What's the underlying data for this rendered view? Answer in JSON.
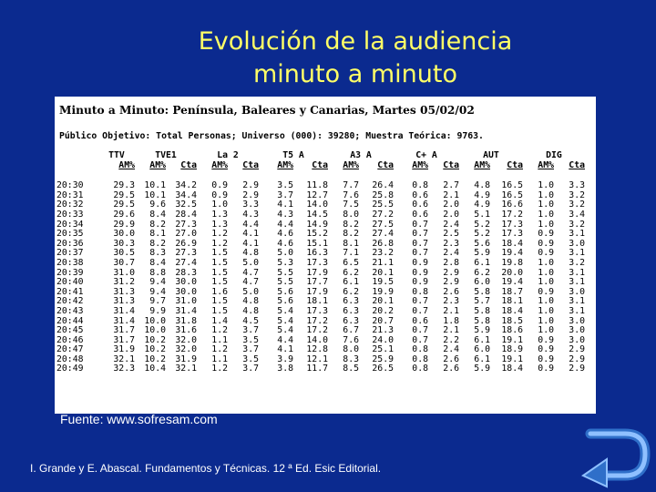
{
  "slide": {
    "title_line1": "Evolución de la audiencia",
    "title_line2": "minuto a minuto",
    "source": "Fuente: www.sofresam.com",
    "footer": "I. Grande y E. Abascal. Fundamentos y Técnicas. 12 ª Ed. Esic Editorial."
  },
  "panel": {
    "title": "Minuto a Minuto: Península, Baleares y Canarias, Martes 05/02/02",
    "subtitle": "Público Objetivo: Total Personas; Universo (000): 39280; Muestra Teórica: 9763.",
    "channels": [
      "TTV",
      "TVE1",
      "La 2",
      "T5 A",
      "A3 A",
      "C+ A",
      "AUT",
      "DIG"
    ],
    "subheaders": [
      "AM%",
      "AM%",
      "Cta",
      "AM%",
      "Cta",
      "AM%",
      "Cta",
      "AM%",
      "Cta",
      "AM%",
      "Cta",
      "AM%",
      "Cta",
      "AM%",
      "Cta"
    ],
    "rows": [
      [
        "20:30",
        "29.3",
        "10.1",
        "34.2",
        "0.9",
        "2.9",
        "3.5",
        "11.8",
        "7.7",
        "26.4",
        "0.8",
        "2.7",
        "4.8",
        "16.5",
        "1.0",
        "3.3"
      ],
      [
        "20:31",
        "29.5",
        "10.1",
        "34.4",
        "0.9",
        "2.9",
        "3.7",
        "12.7",
        "7.6",
        "25.8",
        "0.6",
        "2.1",
        "4.9",
        "16.5",
        "1.0",
        "3.2"
      ],
      [
        "20:32",
        "29.5",
        "9.6",
        "32.5",
        "1.0",
        "3.3",
        "4.1",
        "14.0",
        "7.5",
        "25.5",
        "0.6",
        "2.0",
        "4.9",
        "16.6",
        "1.0",
        "3.2"
      ],
      [
        "20:33",
        "29.6",
        "8.4",
        "28.4",
        "1.3",
        "4.3",
        "4.3",
        "14.5",
        "8.0",
        "27.2",
        "0.6",
        "2.0",
        "5.1",
        "17.2",
        "1.0",
        "3.4"
      ],
      [
        "20:34",
        "29.9",
        "8.2",
        "27.3",
        "1.3",
        "4.4",
        "4.4",
        "14.9",
        "8.2",
        "27.5",
        "0.7",
        "2.4",
        "5.2",
        "17.3",
        "1.0",
        "3.2"
      ],
      [
        "20:35",
        "30.0",
        "8.1",
        "27.0",
        "1.2",
        "4.1",
        "4.6",
        "15.2",
        "8.2",
        "27.4",
        "0.7",
        "2.5",
        "5.2",
        "17.3",
        "0.9",
        "3.1"
      ],
      [
        "20:36",
        "30.3",
        "8.2",
        "26.9",
        "1.2",
        "4.1",
        "4.6",
        "15.1",
        "8.1",
        "26.8",
        "0.7",
        "2.3",
        "5.6",
        "18.4",
        "0.9",
        "3.0"
      ],
      [
        "20:37",
        "30.5",
        "8.3",
        "27.3",
        "1.5",
        "4.8",
        "5.0",
        "16.3",
        "7.1",
        "23.2",
        "0.7",
        "2.4",
        "5.9",
        "19.4",
        "0.9",
        "3.1"
      ],
      [
        "20:38",
        "30.7",
        "8.4",
        "27.4",
        "1.5",
        "5.0",
        "5.3",
        "17.3",
        "6.5",
        "21.1",
        "0.9",
        "2.8",
        "6.1",
        "19.8",
        "1.0",
        "3.2"
      ],
      [
        "20:39",
        "31.0",
        "8.8",
        "28.3",
        "1.5",
        "4.7",
        "5.5",
        "17.9",
        "6.2",
        "20.1",
        "0.9",
        "2.9",
        "6.2",
        "20.0",
        "1.0",
        "3.1"
      ],
      [
        "20:40",
        "31.2",
        "9.4",
        "30.0",
        "1.5",
        "4.7",
        "5.5",
        "17.7",
        "6.1",
        "19.5",
        "0.9",
        "2.9",
        "6.0",
        "19.4",
        "1.0",
        "3.1"
      ],
      [
        "20:41",
        "31.3",
        "9.4",
        "30.0",
        "1.6",
        "5.0",
        "5.6",
        "17.9",
        "6.2",
        "19.9",
        "0.8",
        "2.6",
        "5.8",
        "18.7",
        "0.9",
        "3.0"
      ],
      [
        "20:42",
        "31.3",
        "9.7",
        "31.0",
        "1.5",
        "4.8",
        "5.6",
        "18.1",
        "6.3",
        "20.1",
        "0.7",
        "2.3",
        "5.7",
        "18.1",
        "1.0",
        "3.1"
      ],
      [
        "20:43",
        "31.4",
        "9.9",
        "31.4",
        "1.5",
        "4.8",
        "5.4",
        "17.3",
        "6.3",
        "20.2",
        "0.7",
        "2.1",
        "5.8",
        "18.4",
        "1.0",
        "3.1"
      ],
      [
        "20:44",
        "31.4",
        "10.0",
        "31.8",
        "1.4",
        "4.5",
        "5.4",
        "17.2",
        "6.3",
        "20.7",
        "0.6",
        "1.8",
        "5.8",
        "18.5",
        "1.0",
        "3.0"
      ],
      [
        "20:45",
        "31.7",
        "10.0",
        "31.6",
        "1.2",
        "3.7",
        "5.4",
        "17.2",
        "6.7",
        "21.3",
        "0.7",
        "2.1",
        "5.9",
        "18.6",
        "1.0",
        "3.0"
      ],
      [
        "20:46",
        "31.7",
        "10.2",
        "32.0",
        "1.1",
        "3.5",
        "4.4",
        "14.0",
        "7.6",
        "24.0",
        "0.7",
        "2.2",
        "6.1",
        "19.1",
        "0.9",
        "3.0"
      ],
      [
        "20:47",
        "31.9",
        "10.2",
        "32.0",
        "1.2",
        "3.7",
        "4.1",
        "12.8",
        "8.0",
        "25.1",
        "0.8",
        "2.4",
        "6.0",
        "18.9",
        "0.9",
        "2.9"
      ],
      [
        "20:48",
        "32.1",
        "10.2",
        "31.9",
        "1.1",
        "3.5",
        "3.9",
        "12.1",
        "8.3",
        "25.9",
        "0.8",
        "2.6",
        "6.1",
        "19.1",
        "0.9",
        "2.9"
      ],
      [
        "20:49",
        "32.3",
        "10.4",
        "32.1",
        "1.2",
        "3.7",
        "3.8",
        "11.7",
        "8.5",
        "26.5",
        "0.8",
        "2.6",
        "5.9",
        "18.4",
        "0.9",
        "2.9"
      ]
    ]
  },
  "nav": {
    "back_icon": "curved-return-arrow-icon",
    "colors": {
      "background": "#0b2a8f",
      "title": "#ffff66",
      "arrow": "#3d7fd9"
    }
  }
}
